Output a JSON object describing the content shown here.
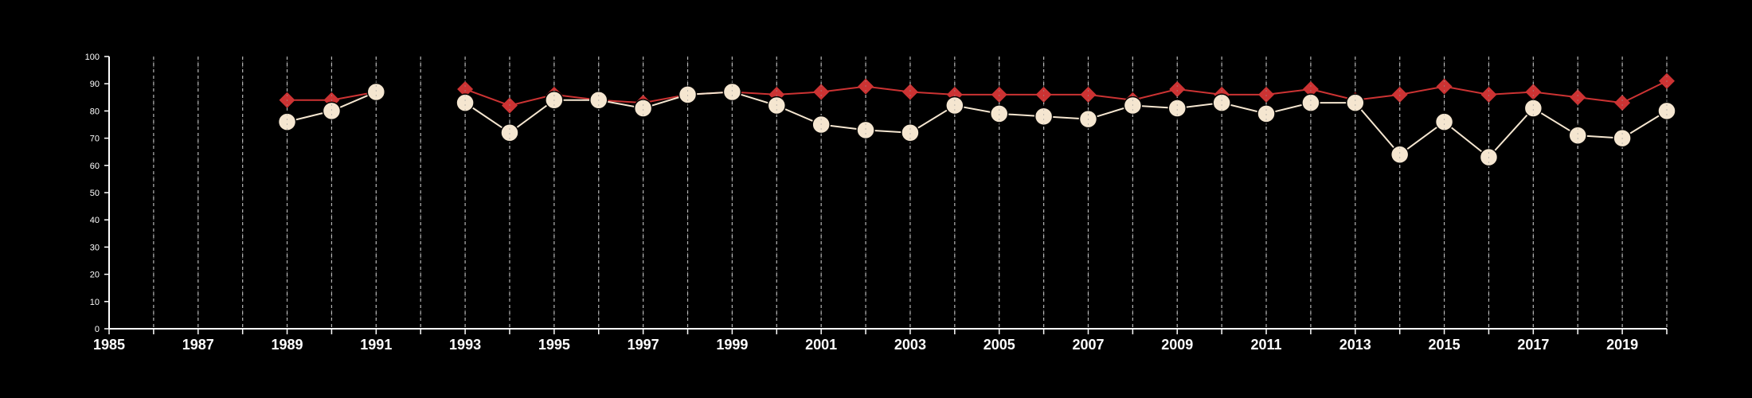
{
  "chart_data": {
    "type": "line",
    "title": "",
    "xlabel": "",
    "ylabel": "",
    "xlim": [
      1985,
      2020
    ],
    "ylim": [
      0,
      100
    ],
    "yticks": [
      0,
      10,
      20,
      30,
      40,
      50,
      60,
      70,
      80,
      90,
      100
    ],
    "xtick_labels": [
      "1985",
      "1987",
      "1989",
      "1991",
      "1993",
      "1995",
      "1997",
      "1999",
      "2001",
      "2003",
      "2005",
      "2007",
      "2009",
      "2011",
      "2013",
      "2015",
      "2017",
      "2019"
    ],
    "grid": "vertical dashed",
    "legend": "none",
    "colors": {
      "background": "#000000",
      "axis": "#ffffff",
      "grid": "#bbbbbb"
    },
    "series": [
      {
        "color": "#cc3333",
        "marker": "diamond",
        "x": [
          1989,
          1990,
          1991,
          1993,
          1994,
          1995,
          1996,
          1997,
          1998,
          1999,
          2000,
          2001,
          2002,
          2003,
          2004,
          2005,
          2006,
          2007,
          2008,
          2009,
          2010,
          2011,
          2012,
          2013,
          2014,
          2015,
          2016,
          2017,
          2018,
          2019,
          2020
        ],
        "values": [
          84,
          84,
          87,
          88,
          82,
          86,
          84,
          83,
          86,
          87,
          86,
          87,
          89,
          87,
          86,
          86,
          86,
          86,
          84,
          88,
          86,
          86,
          88,
          84,
          86,
          89,
          86,
          87,
          85,
          83,
          91
        ]
      },
      {
        "color": "#f5e6d0",
        "marker": "circle",
        "x": [
          1989,
          1990,
          1991,
          1993,
          1994,
          1995,
          1996,
          1997,
          1998,
          1999,
          2000,
          2001,
          2002,
          2003,
          2004,
          2005,
          2006,
          2007,
          2008,
          2009,
          2010,
          2011,
          2012,
          2013,
          2014,
          2015,
          2016,
          2017,
          2018,
          2019,
          2020
        ],
        "values": [
          76,
          80,
          87,
          83,
          72,
          84,
          84,
          81,
          86,
          87,
          82,
          75,
          73,
          72,
          82,
          79,
          78,
          77,
          82,
          81,
          83,
          79,
          83,
          83,
          64,
          76,
          63,
          81,
          71,
          70,
          80
        ]
      }
    ]
  }
}
